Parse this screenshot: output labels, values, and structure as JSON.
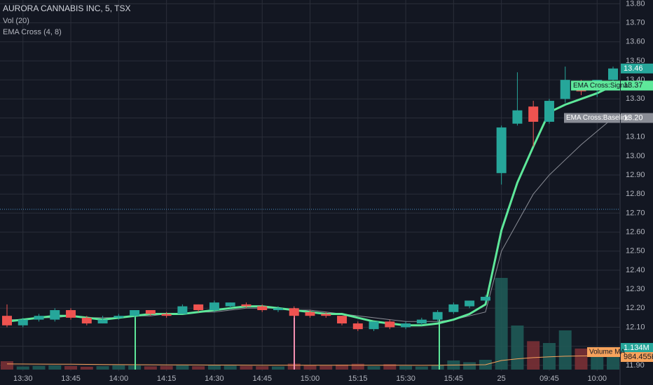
{
  "chart_data": {
    "type": "candlestick",
    "title": "AURORA CANNABIS INC, 5, TSX",
    "indicator_titles": [
      "Vol (20)",
      "EMA Cross (4, 8)"
    ],
    "categories": [
      null,
      "13:30",
      null,
      null,
      "13:45",
      null,
      null,
      "14:00",
      null,
      null,
      "14:15",
      null,
      null,
      "14:30",
      null,
      null,
      "14:45",
      null,
      null,
      "15:00",
      null,
      null,
      "15:15",
      null,
      null,
      "15:30",
      null,
      null,
      "15:45",
      null,
      null,
      "25",
      null,
      null,
      "09:45",
      null,
      null,
      "10:00",
      null
    ],
    "open": [
      12.16,
      12.11,
      12.14,
      12.14,
      12.19,
      12.15,
      12.12,
      12.15,
      12.16,
      12.19,
      12.17,
      12.17,
      12.22,
      12.19,
      12.21,
      12.22,
      12.21,
      12.19,
      12.2,
      12.18,
      12.17,
      12.16,
      12.12,
      12.09,
      12.13,
      12.1,
      12.12,
      12.14,
      12.18,
      12.21,
      12.24,
      12.91,
      13.17,
      13.26,
      13.18,
      13.3,
      13.39,
      13.35,
      13.4
    ],
    "high": [
      12.22,
      12.15,
      12.17,
      12.2,
      12.2,
      12.16,
      12.16,
      12.17,
      12.19,
      12.19,
      12.18,
      12.22,
      12.22,
      12.24,
      12.23,
      12.23,
      12.22,
      12.21,
      12.21,
      12.19,
      12.18,
      12.16,
      12.13,
      12.13,
      12.14,
      12.13,
      12.15,
      12.19,
      12.23,
      12.24,
      12.27,
      13.16,
      13.44,
      13.29,
      13.3,
      13.47,
      13.4,
      13.4,
      13.47
    ],
    "low": [
      12.1,
      12.1,
      12.13,
      12.13,
      12.14,
      12.11,
      12.12,
      12.14,
      12.15,
      12.16,
      12.15,
      12.17,
      12.18,
      12.18,
      12.2,
      12.2,
      12.18,
      12.18,
      12.15,
      12.15,
      12.15,
      12.11,
      12.08,
      12.08,
      12.09,
      12.09,
      12.11,
      12.13,
      12.17,
      12.2,
      12.23,
      12.85,
      13.16,
      13.05,
      13.17,
      13.28,
      13.32,
      13.31,
      13.38
    ],
    "close": [
      12.11,
      12.14,
      12.16,
      12.19,
      12.15,
      12.12,
      12.14,
      12.16,
      12.19,
      12.17,
      12.16,
      12.21,
      12.19,
      12.23,
      12.23,
      12.21,
      12.19,
      12.2,
      12.16,
      12.16,
      12.16,
      12.12,
      12.09,
      12.13,
      12.1,
      12.12,
      12.14,
      12.18,
      12.22,
      12.24,
      12.26,
      13.15,
      13.24,
      13.18,
      13.29,
      13.4,
      13.34,
      13.4,
      13.46
    ],
    "up_color": "#26a69a",
    "down_color": "#ef5350",
    "volume": [
      590000,
      220000,
      260000,
      300000,
      250000,
      200000,
      240000,
      310000,
      280000,
      230000,
      260000,
      300000,
      240000,
      330000,
      280000,
      260000,
      240000,
      220000,
      420000,
      300000,
      270000,
      350000,
      410000,
      240000,
      380000,
      260000,
      220000,
      300000,
      640000,
      520000,
      690000,
      6450000,
      3100000,
      2000000,
      1870000,
      2760000,
      1480000,
      1400000,
      1134000
    ],
    "volume_label": "1.134M",
    "volume_ma": {
      "name": "Volume MA",
      "color": "#f7a35c",
      "last_value_label": "984.455K",
      "values": [
        400000,
        395000,
        390000,
        385000,
        380000,
        370000,
        360000,
        350000,
        345000,
        340000,
        335000,
        330000,
        325000,
        320000,
        318000,
        315000,
        312000,
        310000,
        310000,
        308000,
        306000,
        305000,
        305000,
        304000,
        303000,
        303000,
        302000,
        305000,
        320000,
        330000,
        345000,
        640000,
        760000,
        840000,
        900000,
        940000,
        960000,
        975000,
        984455
      ]
    },
    "series": [
      {
        "name": "EMA Cross:Signal",
        "color": "#5ee89a",
        "values": [
          12.13,
          12.14,
          12.15,
          12.16,
          12.16,
          12.15,
          12.14,
          12.15,
          12.16,
          12.17,
          12.17,
          12.17,
          12.18,
          12.19,
          12.2,
          12.21,
          12.21,
          12.2,
          12.19,
          12.18,
          12.17,
          12.17,
          12.15,
          12.13,
          12.12,
          12.11,
          12.11,
          12.12,
          12.14,
          12.17,
          12.22,
          12.61,
          12.86,
          13.05,
          13.23,
          13.27,
          13.3,
          13.33,
          13.37
        ]
      },
      {
        "name": "EMA Cross:Baseline",
        "color": "#8a8d96",
        "last_value_label": "13.20",
        "values": [
          12.14,
          12.14,
          12.15,
          12.15,
          12.16,
          12.15,
          12.15,
          12.15,
          12.16,
          12.16,
          12.17,
          12.17,
          12.18,
          12.18,
          12.19,
          12.2,
          12.2,
          12.2,
          12.19,
          12.19,
          12.18,
          12.17,
          12.16,
          12.15,
          12.14,
          12.13,
          12.13,
          12.13,
          12.14,
          12.16,
          12.18,
          12.5,
          12.65,
          12.8,
          12.9,
          12.98,
          13.06,
          13.13,
          13.2
        ]
      }
    ],
    "price_line": 12.72,
    "ylim": [
      11.87,
      13.82
    ],
    "yticks": [
      {
        "value": 11.9,
        "label": "11.90"
      },
      {
        "value": 12,
        "label": "12.00"
      },
      {
        "value": 12.1,
        "label": "12.10"
      },
      {
        "value": 12.2,
        "label": "12.20"
      },
      {
        "value": 12.3,
        "label": "12.30"
      },
      {
        "value": 12.4,
        "label": "12.40"
      },
      {
        "value": 12.5,
        "label": "12.50"
      },
      {
        "value": 12.6,
        "label": "12.60"
      },
      {
        "value": 12.7,
        "label": "12.70"
      },
      {
        "value": 12.8,
        "label": "12.80"
      },
      {
        "value": 12.9,
        "label": "12.90"
      },
      {
        "value": 13,
        "label": "13.00"
      },
      {
        "value": 13.1,
        "label": "13.10"
      },
      {
        "value": 13.2,
        "label": "13.20"
      },
      {
        "value": 13.3,
        "label": "13.30"
      },
      {
        "value": 13.4,
        "label": "13.40"
      },
      {
        "value": 13.5,
        "label": "13.50"
      },
      {
        "value": 13.6,
        "label": "13.60"
      },
      {
        "value": 13.7,
        "label": "13.70"
      },
      {
        "value": 13.8,
        "label": "13.80"
      }
    ],
    "grid": true
  }
}
